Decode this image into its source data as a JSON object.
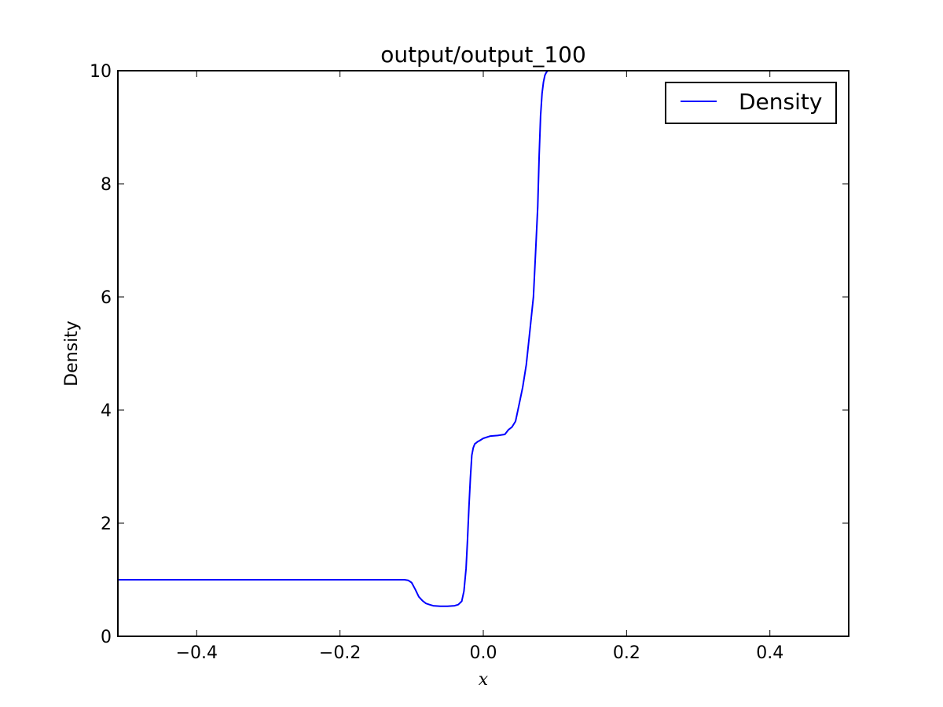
{
  "chart_data": {
    "type": "line",
    "title": "output/output_100",
    "xlabel": "x",
    "ylabel": "Density",
    "xlim": [
      -0.51,
      0.51
    ],
    "ylim": [
      0,
      10
    ],
    "grid": false,
    "legend_position": "top-right",
    "x_ticks": [
      -0.4,
      -0.2,
      0.0,
      0.2,
      0.4
    ],
    "x_tick_labels": [
      "−0.4",
      "−0.2",
      "0.0",
      "0.2",
      "0.4"
    ],
    "y_ticks": [
      0,
      2,
      4,
      6,
      8,
      10
    ],
    "y_tick_labels": [
      "0",
      "2",
      "4",
      "6",
      "8",
      "10"
    ],
    "series": [
      {
        "name": "Density",
        "color": "#0000ff",
        "x": [
          -0.51,
          -0.2,
          -0.11,
          -0.105,
          -0.1,
          -0.095,
          -0.09,
          -0.085,
          -0.08,
          -0.075,
          -0.07,
          -0.06,
          -0.05,
          -0.04,
          -0.035,
          -0.03,
          -0.027,
          -0.024,
          -0.022,
          -0.02,
          -0.018,
          -0.016,
          -0.014,
          -0.012,
          -0.01,
          -0.008,
          -0.005,
          0.0,
          0.01,
          0.02,
          0.03,
          0.035,
          0.04,
          0.045,
          0.05,
          0.055,
          0.06,
          0.065,
          0.07,
          0.073,
          0.076,
          0.078,
          0.08,
          0.082,
          0.084,
          0.086,
          0.088,
          0.09,
          0.092,
          0.094,
          0.096,
          0.1,
          0.105,
          0.11,
          0.15,
          0.2,
          0.3,
          0.4,
          0.51
        ],
        "y": [
          1.0,
          1.0,
          1.0,
          0.99,
          0.95,
          0.83,
          0.7,
          0.63,
          0.58,
          0.56,
          0.54,
          0.53,
          0.53,
          0.54,
          0.56,
          0.62,
          0.8,
          1.2,
          1.7,
          2.3,
          2.8,
          3.2,
          3.33,
          3.4,
          3.42,
          3.44,
          3.46,
          3.5,
          3.54,
          3.55,
          3.57,
          3.65,
          3.7,
          3.8,
          4.1,
          4.4,
          4.8,
          5.4,
          6.0,
          6.8,
          7.6,
          8.5,
          9.2,
          9.6,
          9.8,
          9.92,
          9.97,
          10.0,
          10.0,
          10.0,
          10.0,
          10.0,
          10.0,
          10.0,
          10.0,
          10.0,
          10.0,
          10.0,
          10.0
        ]
      }
    ]
  }
}
